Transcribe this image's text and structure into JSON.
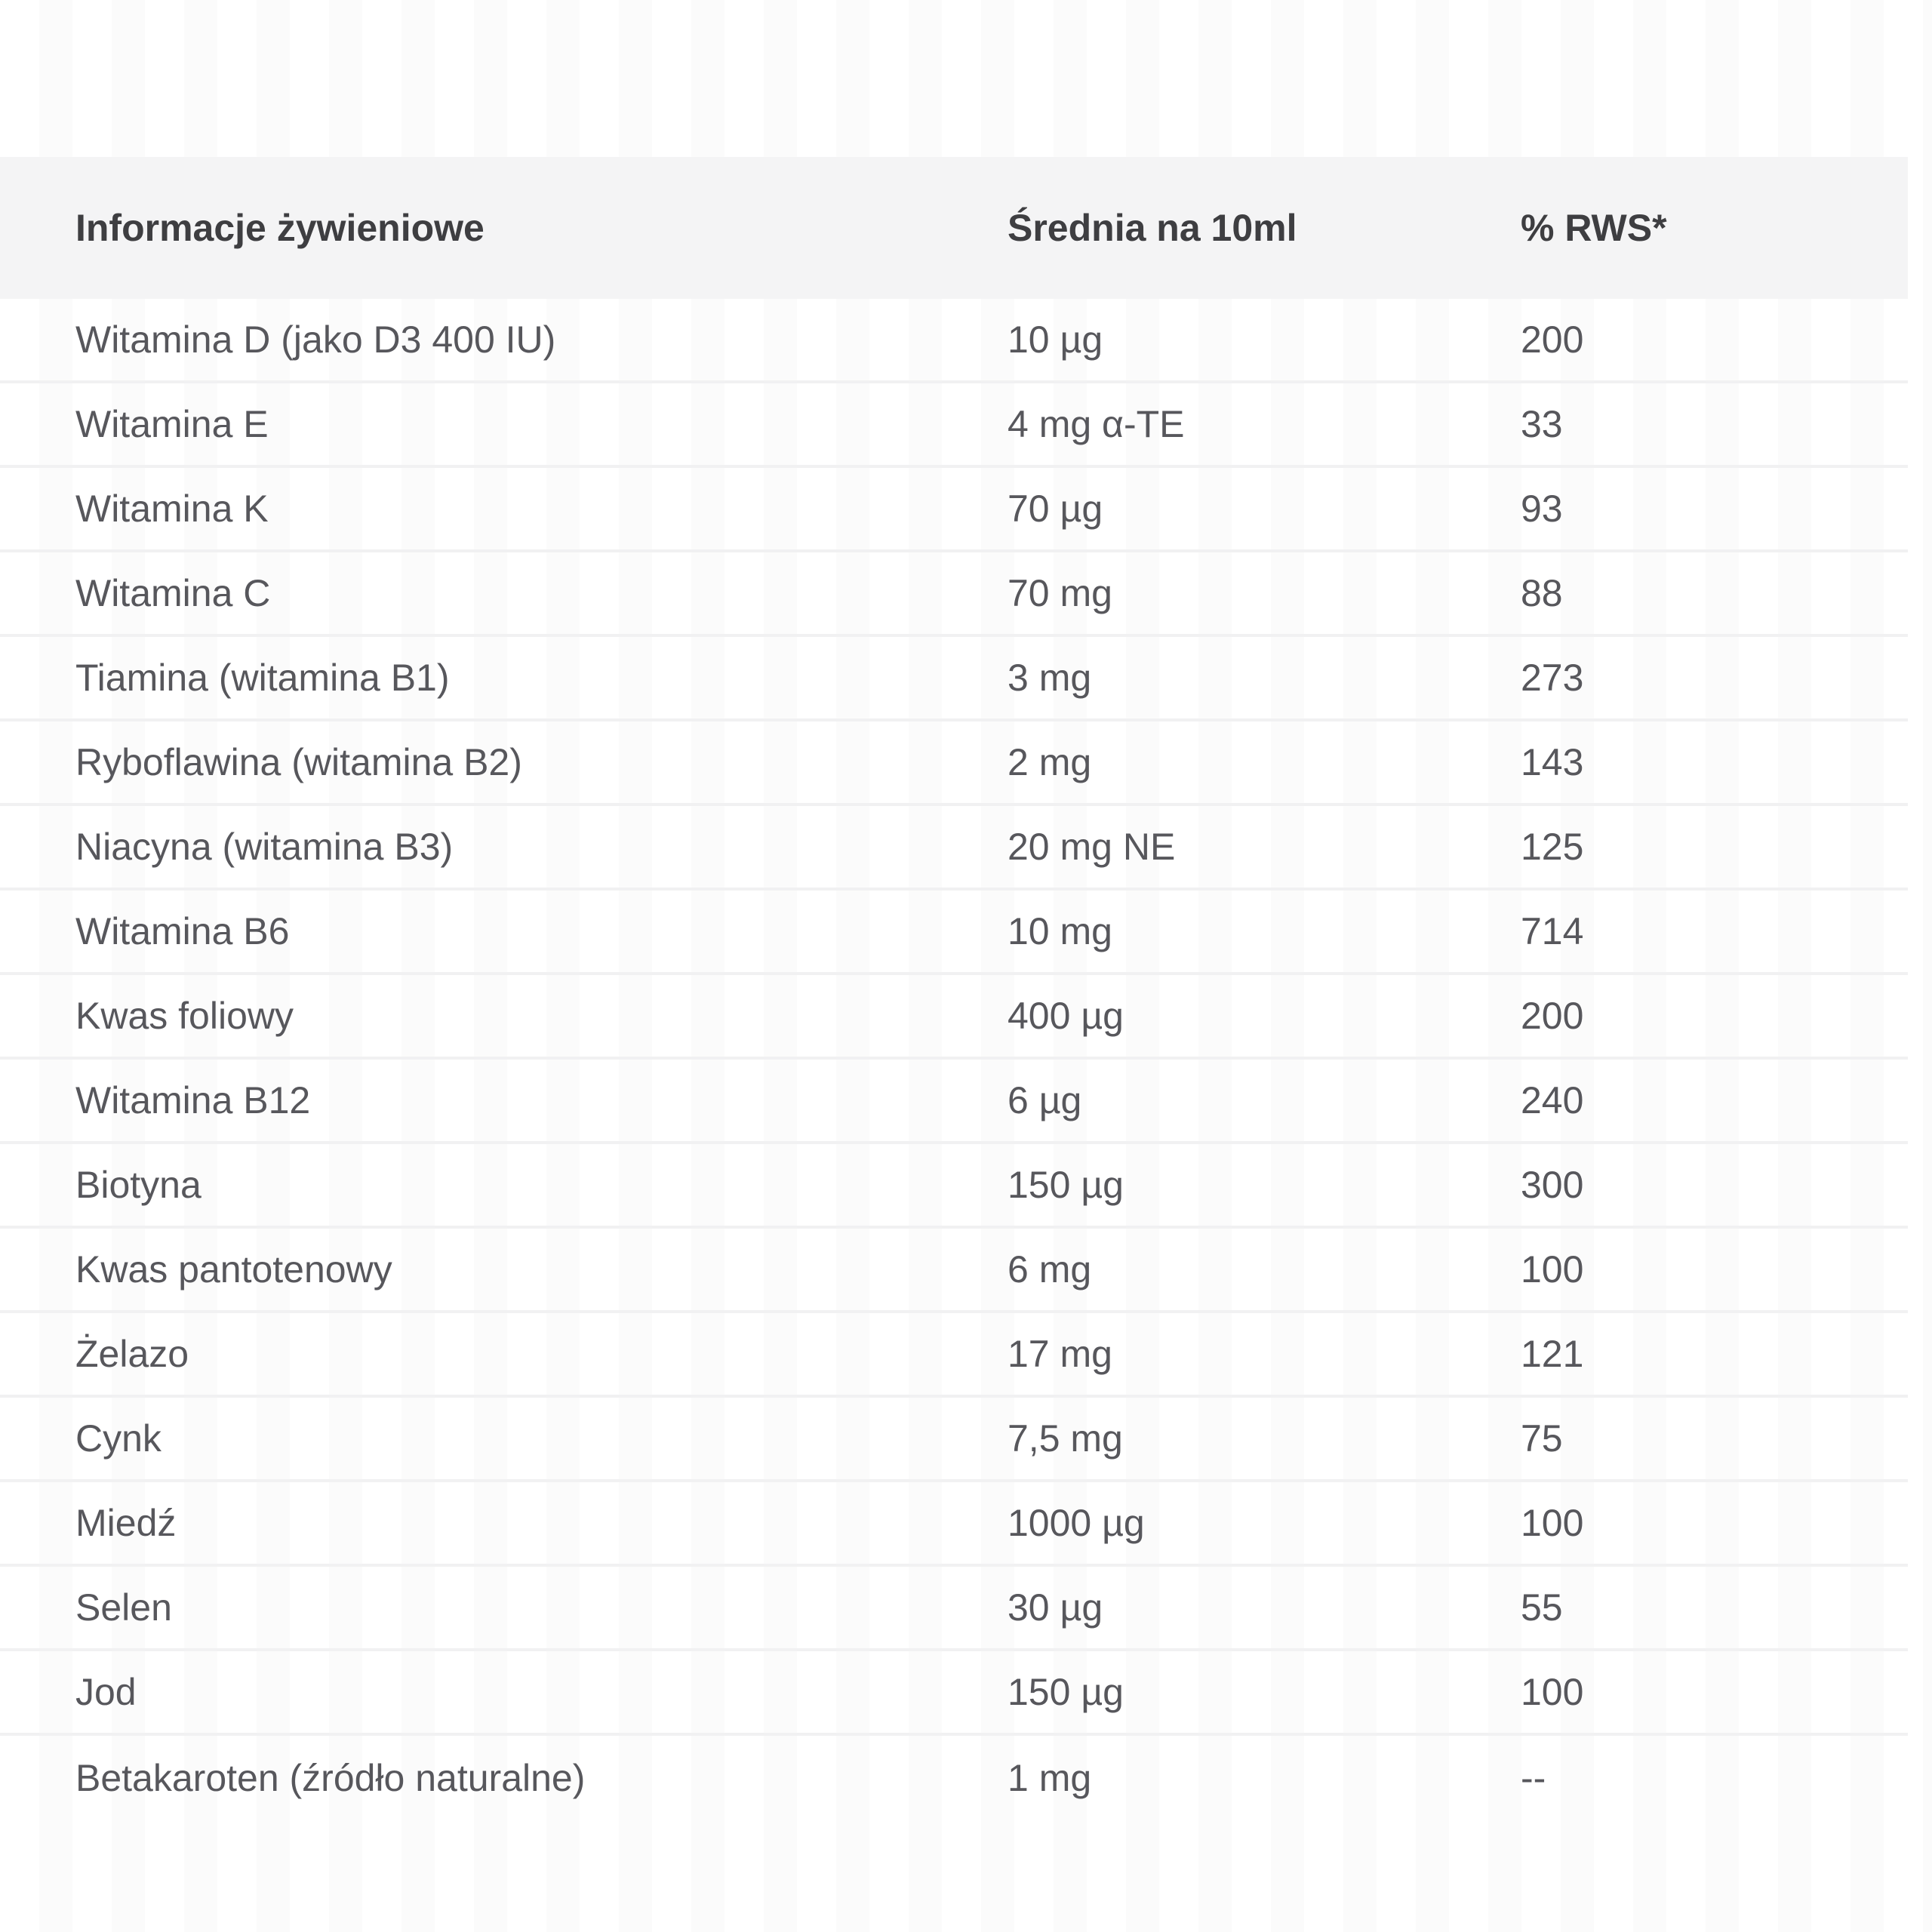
{
  "table": {
    "columns": [
      "Informacje żywieniowe",
      "Średnia na 10ml",
      "% RWS*"
    ],
    "rows": [
      {
        "name": "Witamina D (jako D3 400 IU)",
        "amount": "10 µg",
        "rws": "200"
      },
      {
        "name": "Witamina E",
        "amount": "4 mg α-TE",
        "rws": "33"
      },
      {
        "name": "Witamina K",
        "amount": "70 µg",
        "rws": "93"
      },
      {
        "name": "Witamina C",
        "amount": "70 mg",
        "rws": "88"
      },
      {
        "name": "Tiamina (witamina B1)",
        "amount": "3 mg",
        "rws": "273"
      },
      {
        "name": "Ryboflawina (witamina B2)",
        "amount": "2 mg",
        "rws": "143"
      },
      {
        "name": "Niacyna (witamina B3)",
        "amount": "20 mg NE",
        "rws": "125"
      },
      {
        "name": "Witamina B6",
        "amount": "10 mg",
        "rws": "714"
      },
      {
        "name": "Kwas foliowy",
        "amount": "400 µg",
        "rws": "200"
      },
      {
        "name": "Witamina B12",
        "amount": "6 µg",
        "rws": "240"
      },
      {
        "name": "Biotyna",
        "amount": "150 µg",
        "rws": "300"
      },
      {
        "name": "Kwas pantotenowy",
        "amount": "6 mg",
        "rws": "100"
      },
      {
        "name": "Żelazo",
        "amount": "17 mg",
        "rws": "121"
      },
      {
        "name": "Cynk",
        "amount": "7,5 mg",
        "rws": "75"
      },
      {
        "name": "Miedź",
        "amount": "1000 µg",
        "rws": "100"
      },
      {
        "name": "Selen",
        "amount": "30 µg",
        "rws": "55"
      },
      {
        "name": "Jod",
        "amount": "150 µg",
        "rws": "100"
      },
      {
        "name": "Betakaroten (źródło naturalne)",
        "amount": "1 mg",
        "rws": "--"
      }
    ]
  },
  "colors": {
    "header_background": "#f4f4f5",
    "header_text": "#3e3e41",
    "row_text": "#57575c",
    "separator": "#f1f1f2",
    "page_background": "#ffffff"
  }
}
